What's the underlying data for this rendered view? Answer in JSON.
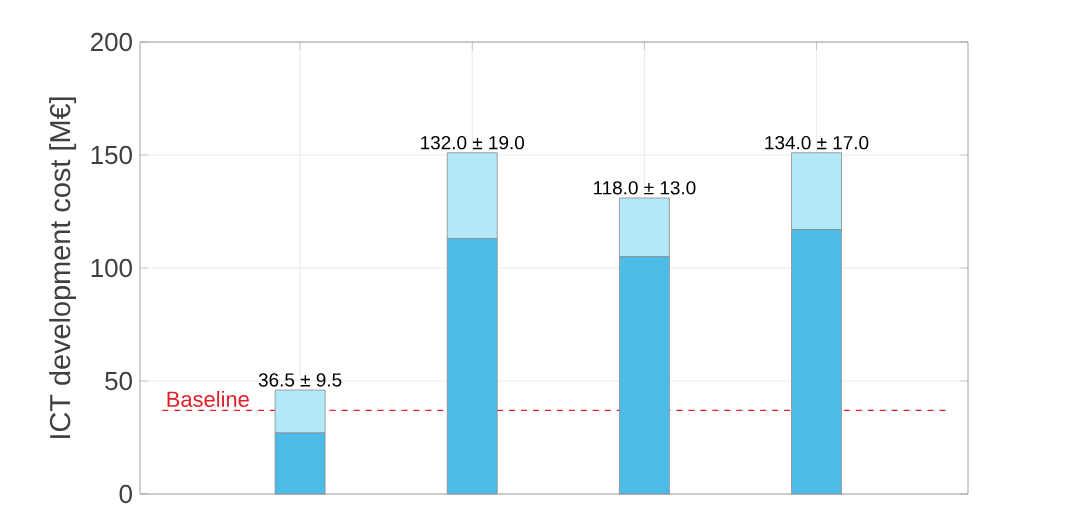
{
  "chart_data": {
    "type": "bar",
    "stacked": true,
    "ylabel": "ICT development cost [M€]",
    "categories": [
      null,
      null,
      null,
      null
    ],
    "series": [
      {
        "color": "#4dbbe8",
        "values": [
          27,
          113,
          105,
          117
        ]
      },
      {
        "color": "#b3e8f8",
        "values": [
          19,
          38,
          26,
          34
        ]
      }
    ],
    "annotations": [
      {
        "text": "36.5 ± 9.5",
        "y": 46
      },
      {
        "text": "132.0 ± 19.0",
        "y": 151
      },
      {
        "text": "118.0 ± 13.0",
        "y": 131
      },
      {
        "text": "134.0 ± 17.0",
        "y": 151
      }
    ],
    "ylim": [
      0,
      200
    ],
    "yticks": [
      0,
      50,
      100,
      150,
      200
    ],
    "grid": true,
    "ref_lines": [
      {
        "axis": "y",
        "value": 37,
        "label": "Baseline",
        "color": "#e0202a",
        "line_style": "dashed"
      }
    ]
  }
}
